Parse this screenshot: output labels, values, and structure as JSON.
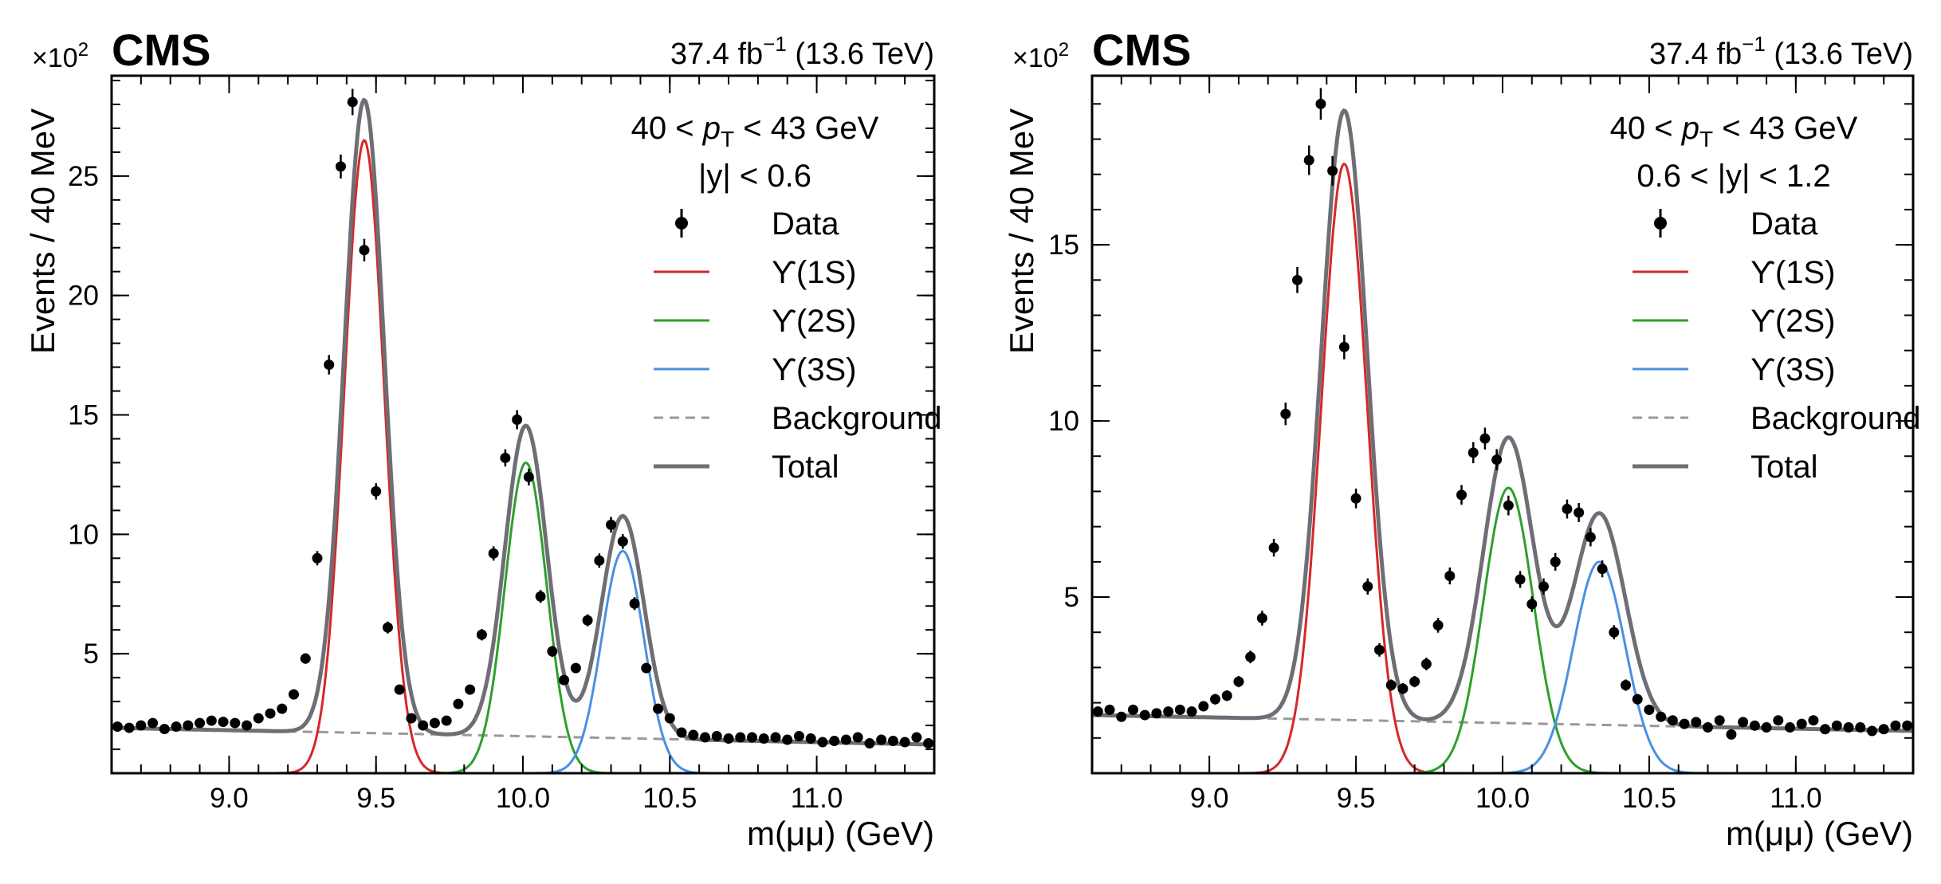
{
  "chart_data": [
    {
      "type": "line",
      "experiment_label": "CMS",
      "lumi_label": "37.4 fb",
      "lumi_exponent": "−1",
      "energy_label": " (13.6 TeV)",
      "y_scale_prefix": "×10",
      "y_scale_exponent": "2",
      "xlabel": "m(μμ) (GeV)",
      "ylabel": "Events / 40 MeV",
      "xlim": [
        8.6,
        11.4
      ],
      "ylim": [
        0,
        29.2
      ],
      "x_ticks": [
        9.0,
        9.5,
        10.0,
        10.5,
        11.0
      ],
      "x_tick_labels": [
        "9.0",
        "9.5",
        "10.0",
        "10.5",
        "11.0"
      ],
      "y_ticks": [
        5,
        10,
        15,
        20,
        25
      ],
      "y_tick_labels": [
        "5",
        "10",
        "15",
        "20",
        "25"
      ],
      "selection": {
        "pt_low": "40 <",
        "pt_var": "p",
        "pt_sub": "T",
        "pt_high": "< 43 GeV",
        "rapidity": "|y| < 0.6"
      },
      "legend": [
        {
          "label": "Data",
          "style": "marker",
          "color": "#000000"
        },
        {
          "label": "ϒ(1S)",
          "style": "line",
          "color": "#d62728"
        },
        {
          "label": "ϒ(2S)",
          "style": "line",
          "color": "#2ca02c"
        },
        {
          "label": "ϒ(3S)",
          "style": "line",
          "color": "#4a90e2"
        },
        {
          "label": "Background",
          "style": "dashed",
          "color": "#999999"
        },
        {
          "label": "Total",
          "style": "line",
          "color": "#6e6e76"
        }
      ],
      "model": {
        "background": {
          "y_at_xmin": 1.9,
          "y_at_xmax": 1.2
        },
        "peaks": [
          {
            "name": "ϒ(1S)",
            "mass": 9.46,
            "amplitude": 26.5,
            "sigma": 0.068
          },
          {
            "name": "ϒ(2S)",
            "mass": 10.01,
            "amplitude": 13.0,
            "sigma": 0.071
          },
          {
            "name": "ϒ(3S)",
            "mass": 10.34,
            "amplitude": 9.3,
            "sigma": 0.072
          }
        ]
      },
      "data": {
        "x": [
          8.62,
          8.66,
          8.7,
          8.74,
          8.78,
          8.82,
          8.86,
          8.9,
          8.94,
          8.98,
          9.02,
          9.06,
          9.1,
          9.14,
          9.18,
          9.22,
          9.26,
          9.3,
          9.34,
          9.38,
          9.42,
          9.46,
          9.5,
          9.54,
          9.58,
          9.62,
          9.66,
          9.7,
          9.74,
          9.78,
          9.82,
          9.86,
          9.9,
          9.94,
          9.98,
          10.02,
          10.06,
          10.1,
          10.14,
          10.18,
          10.22,
          10.26,
          10.3,
          10.34,
          10.38,
          10.42,
          10.46,
          10.5,
          10.54,
          10.58,
          10.62,
          10.66,
          10.7,
          10.74,
          10.78,
          10.82,
          10.86,
          10.9,
          10.94,
          10.98,
          11.02,
          11.06,
          11.1,
          11.14,
          11.18,
          11.22,
          11.26,
          11.3,
          11.34,
          11.38
        ],
        "y": [
          1.95,
          1.9,
          2.0,
          2.1,
          1.85,
          1.95,
          2.0,
          2.1,
          2.2,
          2.15,
          2.1,
          2.0,
          2.3,
          2.5,
          2.7,
          3.3,
          4.8,
          9.0,
          17.1,
          25.4,
          28.1,
          21.9,
          11.8,
          6.1,
          3.5,
          2.3,
          2.0,
          2.1,
          2.2,
          2.9,
          3.5,
          5.8,
          9.2,
          13.2,
          14.8,
          12.4,
          7.4,
          5.1,
          3.9,
          4.4,
          6.4,
          8.9,
          10.4,
          9.7,
          7.1,
          4.4,
          2.7,
          2.3,
          1.7,
          1.6,
          1.5,
          1.55,
          1.45,
          1.5,
          1.5,
          1.45,
          1.5,
          1.4,
          1.55,
          1.45,
          1.3,
          1.35,
          1.4,
          1.5,
          1.25,
          1.4,
          1.35,
          1.3,
          1.5,
          1.25
        ],
        "err": [
          0.15,
          0.15,
          0.15,
          0.15,
          0.15,
          0.15,
          0.15,
          0.15,
          0.15,
          0.15,
          0.15,
          0.15,
          0.16,
          0.16,
          0.17,
          0.19,
          0.22,
          0.3,
          0.41,
          0.5,
          0.55,
          0.47,
          0.34,
          0.25,
          0.19,
          0.16,
          0.15,
          0.15,
          0.15,
          0.17,
          0.19,
          0.24,
          0.3,
          0.36,
          0.4,
          0.35,
          0.27,
          0.23,
          0.2,
          0.21,
          0.25,
          0.3,
          0.33,
          0.31,
          0.27,
          0.21,
          0.17,
          0.16,
          0.14,
          0.14,
          0.13,
          0.13,
          0.13,
          0.13,
          0.13,
          0.13,
          0.13,
          0.13,
          0.13,
          0.13,
          0.12,
          0.12,
          0.12,
          0.13,
          0.12,
          0.12,
          0.12,
          0.12,
          0.13,
          0.12
        ]
      }
    },
    {
      "type": "line",
      "experiment_label": "CMS",
      "lumi_label": "37.4 fb",
      "lumi_exponent": "−1",
      "energy_label": " (13.6 TeV)",
      "y_scale_prefix": "×10",
      "y_scale_exponent": "2",
      "xlabel": "m(μμ) (GeV)",
      "ylabel": "Events / 40 MeV",
      "xlim": [
        8.6,
        11.4
      ],
      "ylim": [
        0,
        19.8
      ],
      "x_ticks": [
        9.0,
        9.5,
        10.0,
        10.5,
        11.0
      ],
      "x_tick_labels": [
        "9.0",
        "9.5",
        "10.0",
        "10.5",
        "11.0"
      ],
      "y_ticks": [
        5,
        10,
        15
      ],
      "y_tick_labels": [
        "5",
        "10",
        "15"
      ],
      "selection": {
        "pt_low": "40 <",
        "pt_var": "p",
        "pt_sub": "T",
        "pt_high": "< 43 GeV",
        "rapidity": "0.6 < |y| < 1.2"
      },
      "legend": [
        {
          "label": "Data",
          "style": "marker",
          "color": "#000000"
        },
        {
          "label": "ϒ(1S)",
          "style": "line",
          "color": "#d62728"
        },
        {
          "label": "ϒ(2S)",
          "style": "line",
          "color": "#2ca02c"
        },
        {
          "label": "ϒ(3S)",
          "style": "line",
          "color": "#4a90e2"
        },
        {
          "label": "Background",
          "style": "dashed",
          "color": "#999999"
        },
        {
          "label": "Total",
          "style": "line",
          "color": "#6e6e76"
        }
      ],
      "model": {
        "background": {
          "y_at_xmin": 1.65,
          "y_at_xmax": 1.2
        },
        "peaks": [
          {
            "name": "ϒ(1S)",
            "mass": 9.46,
            "amplitude": 17.3,
            "sigma": 0.078
          },
          {
            "name": "ϒ(2S)",
            "mass": 10.02,
            "amplitude": 8.1,
            "sigma": 0.085
          },
          {
            "name": "ϒ(3S)",
            "mass": 10.33,
            "amplitude": 6.0,
            "sigma": 0.088
          }
        ]
      },
      "data": {
        "x": [
          8.62,
          8.66,
          8.7,
          8.74,
          8.78,
          8.82,
          8.86,
          8.9,
          8.94,
          8.98,
          9.02,
          9.06,
          9.1,
          9.14,
          9.18,
          9.22,
          9.26,
          9.3,
          9.34,
          9.38,
          9.42,
          9.46,
          9.5,
          9.54,
          9.58,
          9.62,
          9.66,
          9.7,
          9.74,
          9.78,
          9.82,
          9.86,
          9.9,
          9.94,
          9.98,
          10.02,
          10.06,
          10.1,
          10.14,
          10.18,
          10.22,
          10.26,
          10.3,
          10.34,
          10.38,
          10.42,
          10.46,
          10.5,
          10.54,
          10.58,
          10.62,
          10.66,
          10.7,
          10.74,
          10.78,
          10.82,
          10.86,
          10.9,
          10.94,
          10.98,
          11.02,
          11.06,
          11.1,
          11.14,
          11.18,
          11.22,
          11.26,
          11.3,
          11.34,
          11.38
        ],
        "y": [
          1.75,
          1.8,
          1.6,
          1.8,
          1.65,
          1.7,
          1.75,
          1.8,
          1.75,
          1.9,
          2.1,
          2.2,
          2.6,
          3.3,
          4.4,
          6.4,
          10.2,
          14.0,
          17.4,
          19.0,
          17.1,
          12.1,
          7.8,
          5.3,
          3.5,
          2.5,
          2.4,
          2.6,
          3.1,
          4.2,
          5.6,
          7.9,
          9.1,
          9.5,
          8.9,
          7.6,
          5.5,
          4.8,
          5.3,
          6.0,
          7.5,
          7.4,
          6.7,
          5.8,
          4.0,
          2.5,
          2.1,
          1.8,
          1.6,
          1.5,
          1.4,
          1.45,
          1.3,
          1.5,
          1.1,
          1.45,
          1.35,
          1.3,
          1.5,
          1.3,
          1.4,
          1.5,
          1.25,
          1.35,
          1.3,
          1.3,
          1.2,
          1.25,
          1.35,
          1.35
        ],
        "err": [
          0.14,
          0.14,
          0.13,
          0.14,
          0.13,
          0.13,
          0.14,
          0.14,
          0.14,
          0.14,
          0.15,
          0.15,
          0.16,
          0.18,
          0.21,
          0.25,
          0.32,
          0.37,
          0.42,
          0.45,
          0.42,
          0.35,
          0.28,
          0.23,
          0.19,
          0.16,
          0.16,
          0.16,
          0.18,
          0.21,
          0.24,
          0.28,
          0.3,
          0.31,
          0.3,
          0.28,
          0.24,
          0.22,
          0.23,
          0.25,
          0.27,
          0.27,
          0.26,
          0.24,
          0.2,
          0.16,
          0.15,
          0.14,
          0.13,
          0.12,
          0.12,
          0.12,
          0.12,
          0.12,
          0.11,
          0.12,
          0.12,
          0.12,
          0.12,
          0.12,
          0.12,
          0.12,
          0.11,
          0.12,
          0.12,
          0.12,
          0.11,
          0.11,
          0.12,
          0.12
        ]
      }
    }
  ]
}
